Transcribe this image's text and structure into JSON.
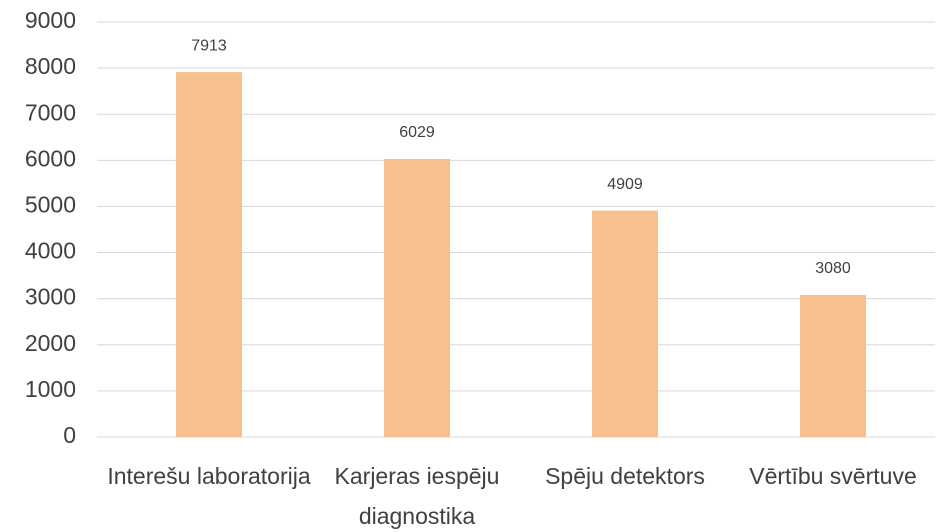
{
  "chart_data": {
    "type": "bar",
    "categories": [
      "Interešu laboratorija",
      "Karjeras iespēju diagnostika",
      "Spēju detektors",
      "Vērtību svērtuve"
    ],
    "values": [
      7913,
      6029,
      4909,
      3080
    ],
    "color": "#f8bf8f",
    "ylim": [
      0,
      9000
    ],
    "yticks": [
      0,
      1000,
      2000,
      3000,
      4000,
      5000,
      6000,
      7000,
      8000,
      9000
    ],
    "grid": true
  }
}
